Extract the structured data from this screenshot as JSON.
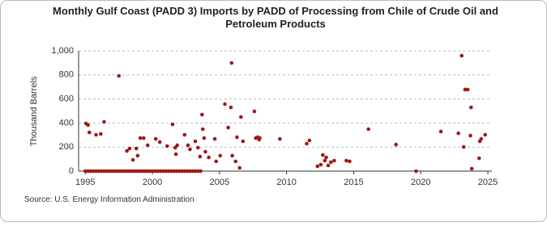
{
  "chart_data": {
    "type": "scatter",
    "title": "Monthly Gulf Coast (PADD 3) Imports by PADD of Processing from Chile of Crude Oil and Petroleum Products",
    "y_label": "Thousand Barrels",
    "source": "Source: U.S. Energy Information Administration",
    "color": "#a01818",
    "grid": true,
    "xlim": [
      1994.5,
      2025.3
    ],
    "xticks": [
      1995,
      2000,
      2005,
      2010,
      2015,
      2020,
      2025
    ],
    "ylim": [
      0,
      1000
    ],
    "yticks": [
      0,
      200,
      400,
      600,
      800,
      {
        "value": 1000,
        "label": "1,000"
      }
    ],
    "x": [
      1995.0,
      1995.2,
      1995.4,
      1995.6,
      1995.8,
      1996.0,
      1996.2,
      1996.4,
      1996.6,
      1996.8,
      1997.0,
      1997.2,
      1997.4,
      1997.6,
      1997.8,
      1998.0,
      1998.2,
      1998.4,
      1998.6,
      1998.8,
      1999.0,
      1999.2,
      1999.4,
      1999.6,
      1999.8,
      2000.0,
      2000.2,
      2000.4,
      2000.6,
      2000.8,
      2001.0,
      2001.2,
      2001.4,
      2001.6,
      2001.8,
      2002.0,
      2002.2,
      2002.4,
      2002.6,
      2002.8,
      2003.0,
      2003.2,
      2003.4,
      2003.6,
      1995.05,
      1995.2,
      1995.3,
      1995.8,
      1996.15,
      1996.4,
      1997.5,
      1998.1,
      1998.3,
      1998.55,
      1998.8,
      1998.9,
      1999.1,
      1999.35,
      1999.65,
      2000.25,
      2000.55,
      2001.1,
      2001.5,
      2001.7,
      2001.85,
      2001.75,
      2002.4,
      2002.65,
      2002.8,
      2003.2,
      2003.4,
      2003.55,
      2003.7,
      2003.75,
      2003.85,
      2003.95,
      2004.2,
      2004.65,
      2004.75,
      2005.05,
      2005.4,
      2005.65,
      2005.85,
      2005.9,
      2005.95,
      2006.2,
      2006.3,
      2006.5,
      2006.6,
      2006.75,
      2007.6,
      2007.7,
      2007.85,
      2007.95,
      2008.0,
      2009.5,
      2011.5,
      2011.7,
      2012.3,
      2012.55,
      2012.7,
      2012.85,
      2012.95,
      2013.1,
      2013.3,
      2013.55,
      2014.45,
      2014.7,
      2016.1,
      2018.15,
      2019.65,
      2021.5,
      2022.8,
      2023.05,
      2023.2,
      2023.3,
      2023.5,
      2023.7,
      2023.75,
      2023.8,
      2024.4,
      2024.5,
      2024.35,
      2024.8
    ],
    "values": [
      0,
      0,
      0,
      0,
      0,
      0,
      0,
      0,
      0,
      0,
      0,
      0,
      0,
      0,
      0,
      0,
      0,
      0,
      0,
      0,
      0,
      0,
      0,
      0,
      0,
      0,
      0,
      0,
      0,
      0,
      0,
      0,
      0,
      0,
      0,
      0,
      0,
      0,
      0,
      0,
      0,
      0,
      0,
      0,
      396,
      383,
      322,
      302,
      309,
      409,
      792,
      168,
      188,
      94,
      188,
      128,
      275,
      275,
      215,
      268,
      242,
      208,
      389,
      195,
      215,
      141,
      302,
      215,
      181,
      248,
      195,
      121,
      470,
      349,
      275,
      161,
      114,
      268,
      81,
      128,
      557,
      362,
      530,
      899,
      128,
      81,
      282,
      27,
      450,
      248,
      497,
      275,
      282,
      262,
      275,
      268,
      228,
      255,
      40,
      54,
      134,
      87,
      114,
      47,
      74,
      87,
      87,
      81,
      349,
      221,
      0,
      329,
      315,
      960,
      201,
      678,
      678,
      295,
      530,
      20,
      248,
      268,
      107,
      302
    ]
  }
}
